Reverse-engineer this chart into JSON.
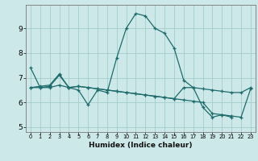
{
  "xlabel": "Humidex (Indice chaleur)",
  "bg_color": "#cde8e8",
  "grid_color": "#a4cccc",
  "line_color": "#1e6b6b",
  "x": [
    0,
    1,
    2,
    3,
    4,
    5,
    6,
    7,
    8,
    9,
    10,
    11,
    12,
    13,
    14,
    15,
    16,
    17,
    18,
    19,
    20,
    21,
    22,
    23
  ],
  "line1": [
    7.4,
    6.6,
    6.6,
    6.7,
    6.6,
    6.5,
    5.9,
    6.5,
    6.4,
    7.8,
    9.0,
    9.6,
    9.5,
    9.0,
    8.8,
    8.2,
    6.9,
    6.6,
    5.8,
    5.4,
    5.5,
    5.4,
    null,
    null
  ],
  "line2": [
    6.6,
    6.65,
    6.7,
    7.15,
    6.6,
    6.65,
    6.6,
    6.55,
    6.5,
    6.45,
    6.4,
    6.35,
    6.3,
    6.25,
    6.2,
    6.15,
    6.6,
    6.6,
    6.55,
    6.5,
    6.45,
    6.4,
    6.4,
    6.6
  ],
  "line3": [
    6.6,
    6.6,
    6.65,
    7.1,
    6.6,
    6.65,
    6.6,
    6.55,
    6.5,
    6.45,
    6.4,
    6.35,
    6.3,
    6.25,
    6.2,
    6.15,
    6.1,
    6.05,
    6.0,
    5.55,
    5.5,
    5.45,
    5.4,
    6.55
  ],
  "ylim": [
    4.8,
    9.95
  ],
  "yticks": [
    5,
    6,
    7,
    8,
    9
  ],
  "xlim": [
    -0.5,
    23.5
  ]
}
